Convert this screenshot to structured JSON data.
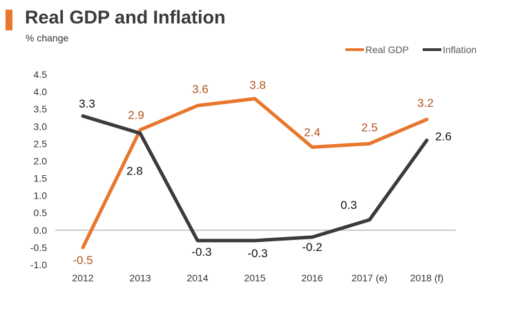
{
  "colors": {
    "accent": "#e8772e",
    "gdp": "#e8772e",
    "inflation": "#3b3b3b",
    "gdp_label": "#b3541e",
    "axis": "#999999"
  },
  "chart_data": {
    "type": "line",
    "title": "Real GDP and Inflation",
    "subtitle": "% change",
    "xlabel": "",
    "ylabel": "% change",
    "categories": [
      "2012",
      "2013",
      "2014",
      "2015",
      "2016",
      "2017 (e)",
      "2018 (f)"
    ],
    "ylim": [
      -1.0,
      4.5
    ],
    "yticks": [
      "-1.0",
      "-0.5",
      "0.0",
      "0.5",
      "1.0",
      "1.5",
      "2.0",
      "2.5",
      "3.0",
      "3.5",
      "4.0",
      "4.5"
    ],
    "legend_position": "top-right",
    "series": [
      {
        "name": "Real GDP",
        "values": [
          -0.5,
          2.9,
          3.6,
          3.8,
          2.4,
          2.5,
          3.2
        ],
        "labels": [
          "-0.5",
          "2.9",
          "3.6",
          "3.8",
          "2.4",
          "2.5",
          "3.2"
        ]
      },
      {
        "name": "Inflation",
        "values": [
          3.3,
          2.8,
          -0.3,
          -0.3,
          -0.2,
          0.3,
          2.6
        ],
        "labels": [
          "3.3",
          "2.8",
          "-0.3",
          "-0.3",
          "-0.2",
          "0.3",
          "2.6"
        ]
      }
    ]
  }
}
